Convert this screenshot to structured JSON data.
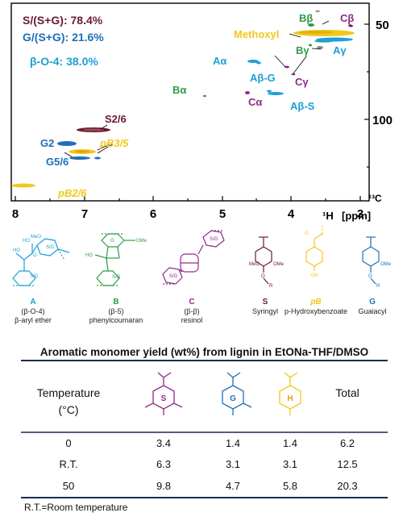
{
  "nmr": {
    "x_ticks": [
      "8",
      "7",
      "6",
      "5",
      "4",
      "3"
    ],
    "y_ticks": [
      "50",
      "100"
    ],
    "x_unit": "[ppm]",
    "x_nucleus": "¹H",
    "y_nucleus": "¹³C",
    "ratio_s_label": "S/(S+G): ",
    "ratio_s_value": "78.4%",
    "ratio_g_label": "G/(S+G): ",
    "ratio_g_value": "21.6%",
    "bo4_label": "β-O-4: ",
    "bo4_value": "38.0%",
    "peaks": {
      "b_beta": "Bβ",
      "c_beta": "Cβ",
      "methoxyl": "Methoxyl",
      "b_gamma": "Bγ",
      "a_gamma": "Aγ",
      "a_alpha": "Aα",
      "a_beta_g": "Aβ-G",
      "c_gamma": "Cγ",
      "b_alpha": "Bα",
      "c_alpha": "Cα",
      "a_beta_s": "Aβ-S",
      "s26": "S2/6",
      "g2": "G2",
      "pb35": "pB3/5",
      "g56": "G5/6",
      "pb26": "pB2/6"
    },
    "colors": {
      "s": "#6b1a2f",
      "g": "#1f6fb8",
      "a": "#1d9fd8",
      "b": "#2e9b45",
      "c": "#8e2a8c",
      "pb": "#f2c81a"
    }
  },
  "structures": [
    {
      "letter": "A",
      "linkage": "(β-O-4)",
      "name": "β-aryl ether"
    },
    {
      "letter": "B",
      "linkage": "(β-5)",
      "name": "phenylcoumaran"
    },
    {
      "letter": "C",
      "linkage": "(β-β)",
      "name": "resinol"
    },
    {
      "letter": "S",
      "linkage": "",
      "name": "Syringyl"
    },
    {
      "letter": "pB",
      "linkage": "",
      "name": "p-Hydroxybenzoate"
    },
    {
      "letter": "G",
      "linkage": "",
      "name": "Guaiacyl"
    }
  ],
  "table": {
    "title": "Aromatic monomer yield (wt%) from lignin in EtONa-THF/DMSO",
    "header_temp_line1": "Temperature",
    "header_temp_line2": "(°C)",
    "header_total": "Total",
    "monomer_labels": [
      "S",
      "G",
      "H"
    ],
    "rows": [
      {
        "temp": "0",
        "s": "3.4",
        "g": "1.4",
        "h": "1.4",
        "total": "6.2"
      },
      {
        "temp": "R.T.",
        "s": "6.3",
        "g": "3.1",
        "h": "3.1",
        "total": "12.5"
      },
      {
        "temp": "50",
        "s": "9.8",
        "g": "4.7",
        "h": "5.8",
        "total": "20.3"
      }
    ],
    "note": "R.T.=Room temperature"
  }
}
